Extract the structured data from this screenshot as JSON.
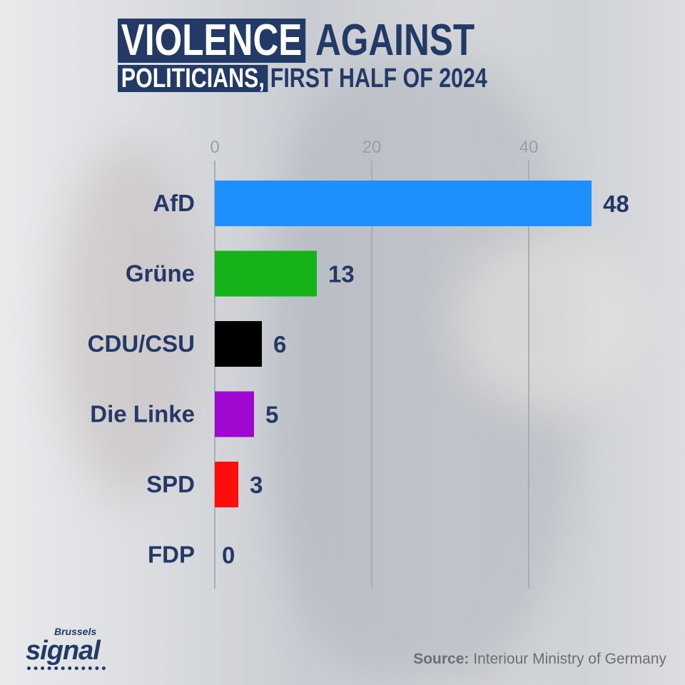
{
  "title": {
    "part1": "VIOLENCE",
    "part2": "AGAINST",
    "part3": "POLITICIANS,",
    "part4": "FIRST HALF OF 2024"
  },
  "source": {
    "label": "Source:",
    "text": "Interiour Ministry of Germany"
  },
  "logo": {
    "top": "Brussels",
    "main": "signal"
  },
  "chart_data": {
    "type": "bar",
    "orientation": "horizontal",
    "title": "VIOLENCE AGAINST POLITICIANS, FIRST HALF OF 2024",
    "categories": [
      "AfD",
      "Grüne",
      "CDU/CSU",
      "Die Linke",
      "SPD",
      "FDP"
    ],
    "values": [
      48,
      13,
      6,
      5,
      3,
      0
    ],
    "colors": [
      "#1e8fff",
      "#17b21a",
      "#000000",
      "#a007d0",
      "#ff0d0d",
      "#999999"
    ],
    "xticks": [
      0,
      20,
      40
    ],
    "xlim": [
      0,
      60
    ],
    "grid": true,
    "xlabel": "",
    "ylabel": ""
  }
}
